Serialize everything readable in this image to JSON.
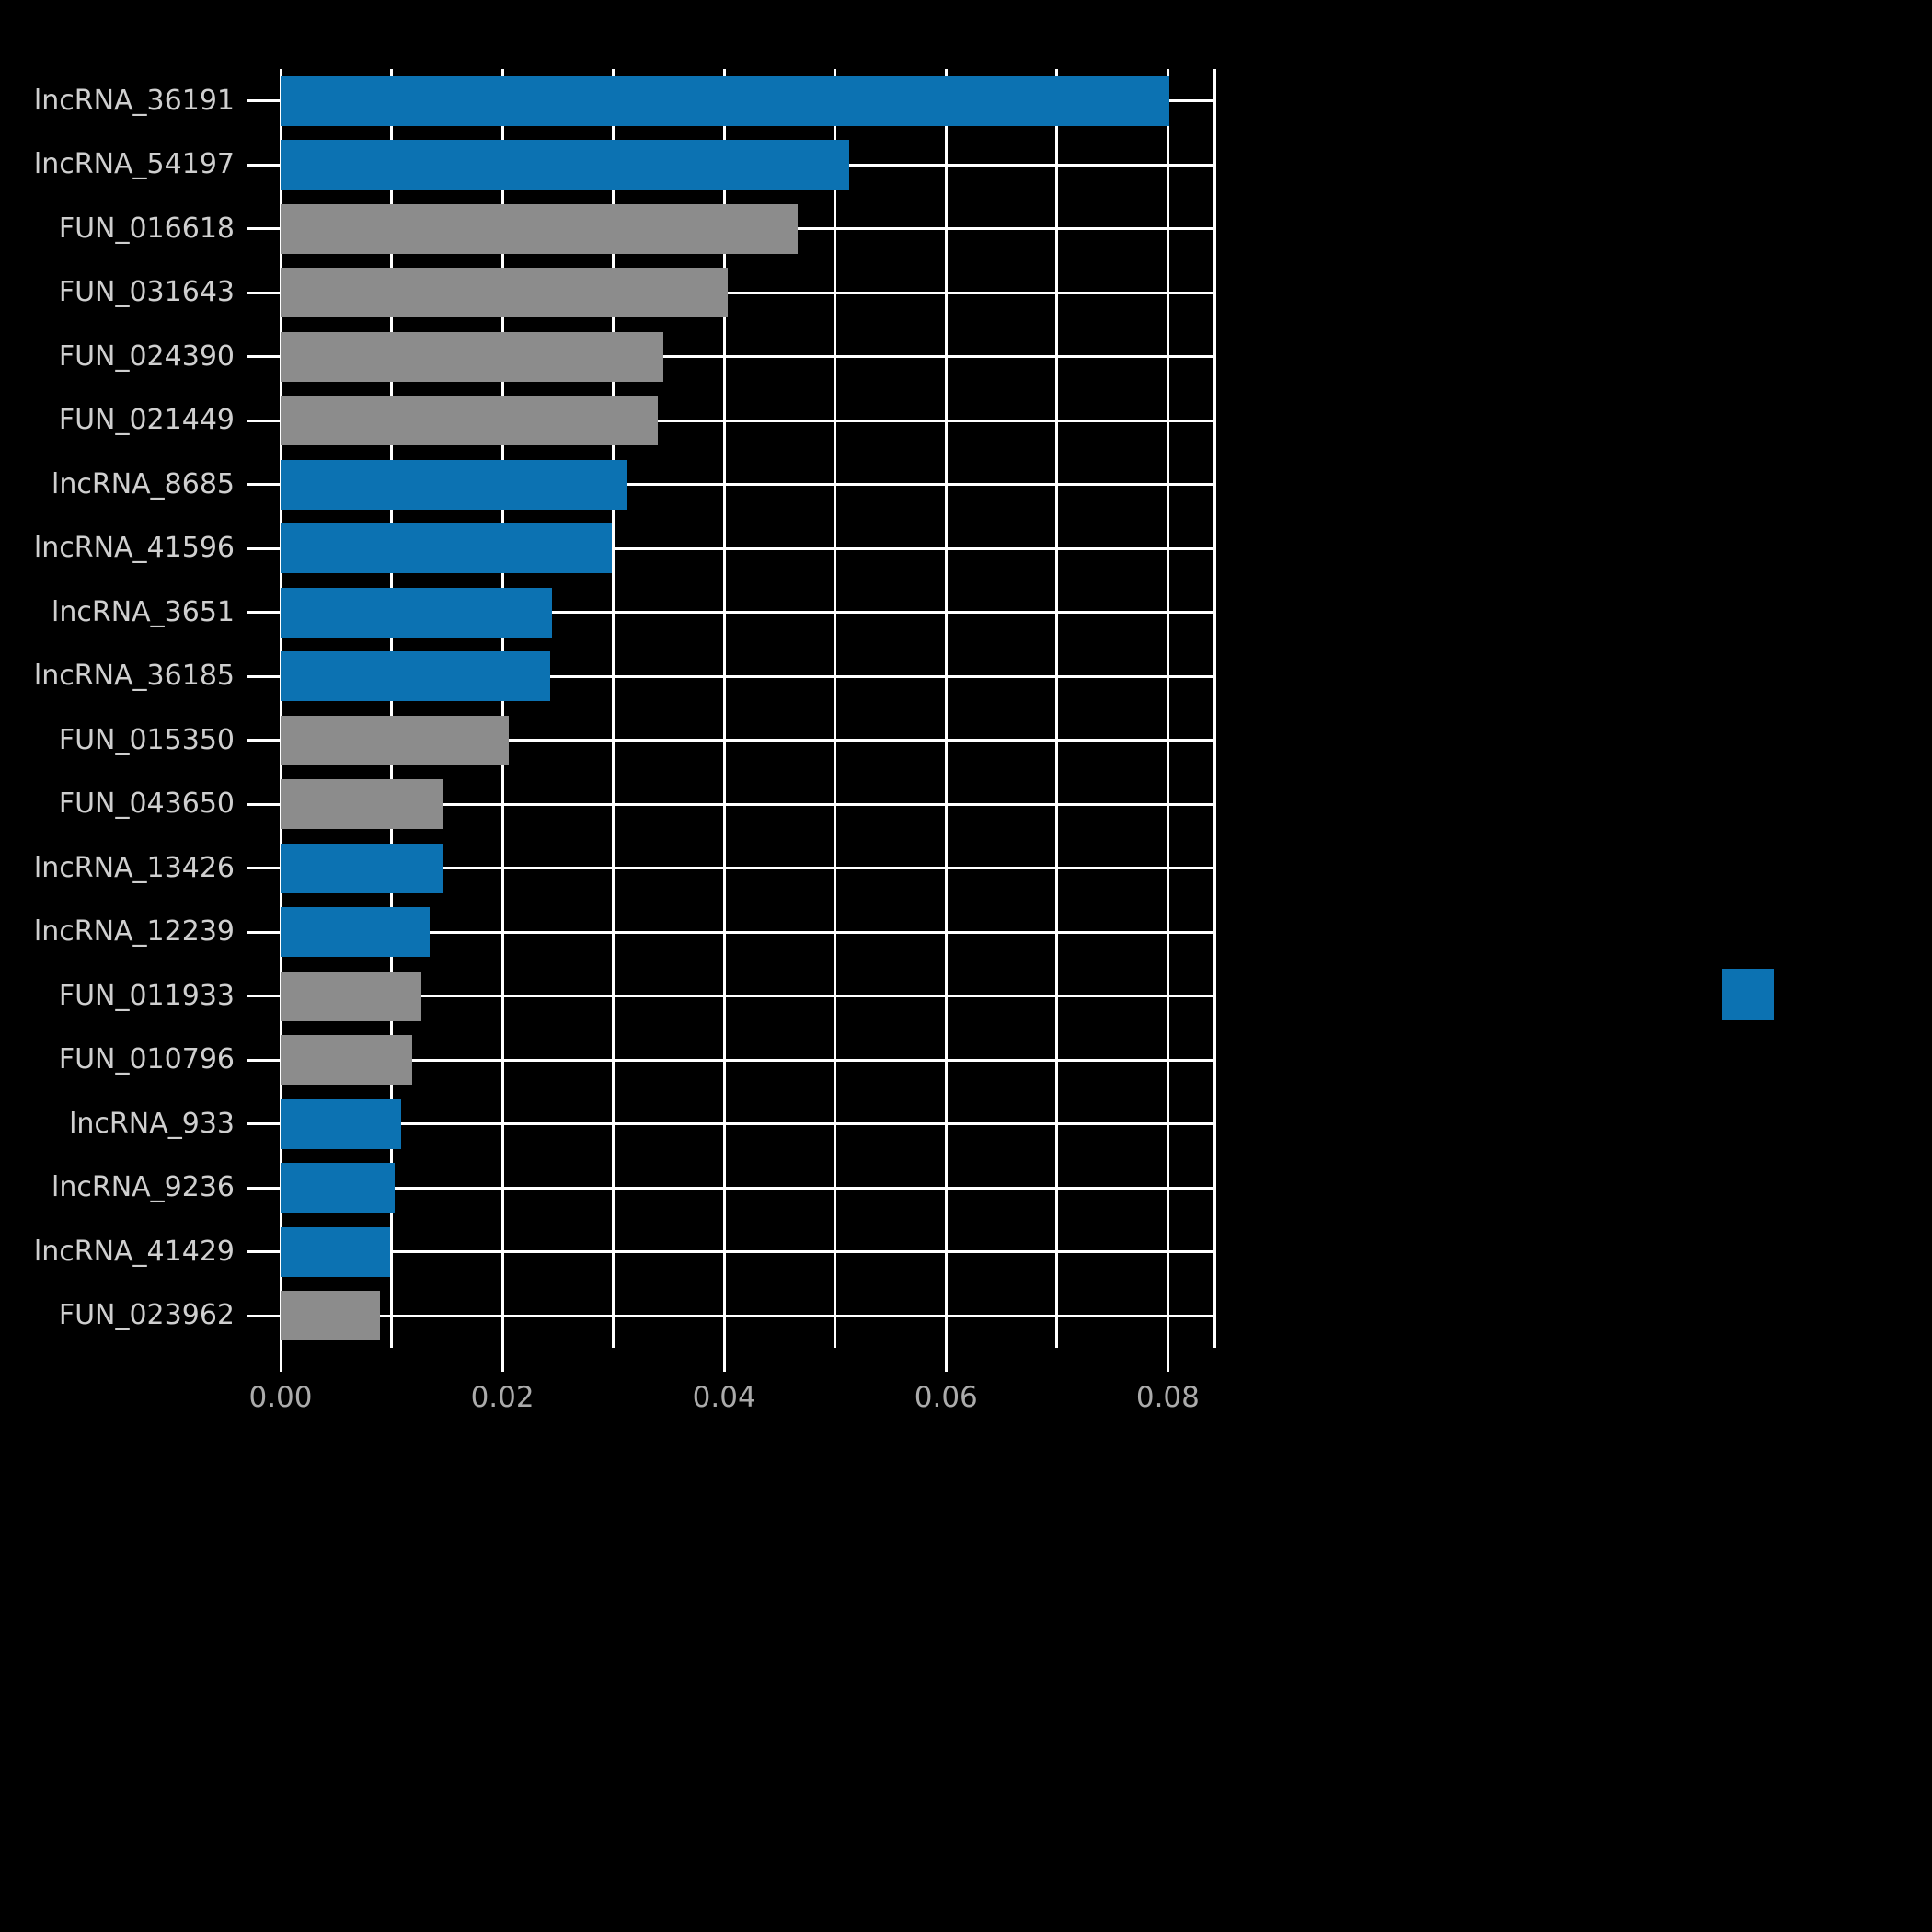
{
  "chart_data": {
    "type": "bar",
    "orientation": "horizontal",
    "title": "",
    "xlabel": "",
    "ylabel": "",
    "xlim": [
      0,
      0.0842
    ],
    "x_ticks": [
      {
        "label": "0.00",
        "value": 0.0
      },
      {
        "label": "0.02",
        "value": 0.02
      },
      {
        "label": "0.04",
        "value": 0.04
      },
      {
        "label": "0.06",
        "value": 0.06
      },
      {
        "label": "0.08",
        "value": 0.08
      }
    ],
    "gridline_step": 0.01,
    "grid": "on",
    "categories": [
      "lncRNA_36191",
      "lncRNA_54197",
      "FUN_016618",
      "FUN_031643",
      "FUN_024390",
      "FUN_021449",
      "lncRNA_8685",
      "lncRNA_41596",
      "lncRNA_3651",
      "lncRNA_36185",
      "FUN_015350",
      "FUN_043650",
      "lncRNA_13426",
      "lncRNA_12239",
      "FUN_011933",
      "FUN_010796",
      "lncRNA_933",
      "lncRNA_9236",
      "lncRNA_41429",
      "FUN_023962"
    ],
    "values": [
      0.0801,
      0.0513,
      0.0466,
      0.0403,
      0.0345,
      0.034,
      0.0313,
      0.0299,
      0.0245,
      0.0243,
      0.0206,
      0.0146,
      0.0146,
      0.0134,
      0.0127,
      0.0119,
      0.0109,
      0.0103,
      0.0099,
      0.009
    ],
    "groups": [
      "lncRNA",
      "lncRNA",
      "FUN",
      "FUN",
      "FUN",
      "FUN",
      "lncRNA",
      "lncRNA",
      "lncRNA",
      "lncRNA",
      "FUN",
      "FUN",
      "lncRNA",
      "lncRNA",
      "FUN",
      "FUN",
      "lncRNA",
      "lncRNA",
      "lncRNA",
      "FUN"
    ],
    "colors": {
      "lncRNA": "#0c72b2",
      "FUN": "#8c8c8c"
    },
    "legend": {
      "position": "right",
      "swatch_color": "#0c72b2"
    }
  }
}
